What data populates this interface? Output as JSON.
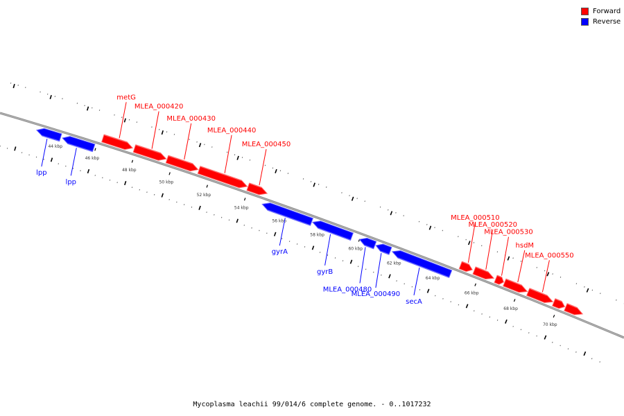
{
  "legend": {
    "forward": {
      "label": "Forward",
      "color": "#ff0000"
    },
    "reverse": {
      "label": "Reverse",
      "color": "#0000ff"
    }
  },
  "footer_text": "Mycoplasma leachii 99/014/6 complete genome. - 0..1017232",
  "ruler": {
    "unit": "kbp",
    "labels": [
      "44 kbp",
      "46 kbp",
      "48 kbp",
      "50 kbp",
      "52 kbp",
      "54 kbp",
      "56 kbp",
      "58 kbp",
      "60 kbp",
      "62 kbp",
      "64 kbp",
      "66 kbp",
      "68 kbp",
      "70 kbp"
    ]
  },
  "features": [
    {
      "label": "lpp",
      "strand": "reverse",
      "start": 42.8,
      "end": 44.1
    },
    {
      "label": "lpp",
      "strand": "reverse",
      "start": 44.2,
      "end": 45.9
    },
    {
      "label": "metG",
      "strand": "forward",
      "start": 46.2,
      "end": 47.8
    },
    {
      "label": "MLEA_000420",
      "strand": "forward",
      "start": 47.9,
      "end": 49.6
    },
    {
      "label": "MLEA_000430",
      "strand": "forward",
      "start": 49.65,
      "end": 51.3
    },
    {
      "label": "MLEA_000440",
      "strand": "forward",
      "start": 51.35,
      "end": 53.9
    },
    {
      "label": "MLEA_000450",
      "strand": "forward",
      "start": 53.95,
      "end": 54.95
    },
    {
      "label": "gyrA",
      "strand": "reverse",
      "start": 54.9,
      "end": 57.5
    },
    {
      "label": "gyrB",
      "strand": "reverse",
      "start": 57.55,
      "end": 59.6
    },
    {
      "label": "MLEA_000480",
      "strand": "reverse",
      "start": 60.0,
      "end": 60.8
    },
    {
      "label": "MLEA_000490",
      "strand": "reverse",
      "start": 60.85,
      "end": 61.6
    },
    {
      "label": "secA",
      "strand": "reverse",
      "start": 61.7,
      "end": 64.7
    },
    {
      "label": "MLEA_000510",
      "strand": "forward",
      "start": 65.0,
      "end": 65.6
    },
    {
      "label": "MLEA_000520",
      "strand": "forward",
      "start": 65.7,
      "end": 66.7
    },
    {
      "label": "MLEA_000530",
      "strand": "forward",
      "start": 66.8,
      "end": 67.2
    },
    {
      "label": "hsdM",
      "strand": "forward",
      "start": 67.25,
      "end": 68.4
    },
    {
      "label": "MLEA_000550",
      "strand": "forward",
      "start": 68.45,
      "end": 69.7
    },
    {
      "label": "",
      "strand": "forward",
      "start": 69.75,
      "end": 70.3
    },
    {
      "label": "",
      "strand": "forward",
      "start": 70.35,
      "end": 71.2
    }
  ]
}
